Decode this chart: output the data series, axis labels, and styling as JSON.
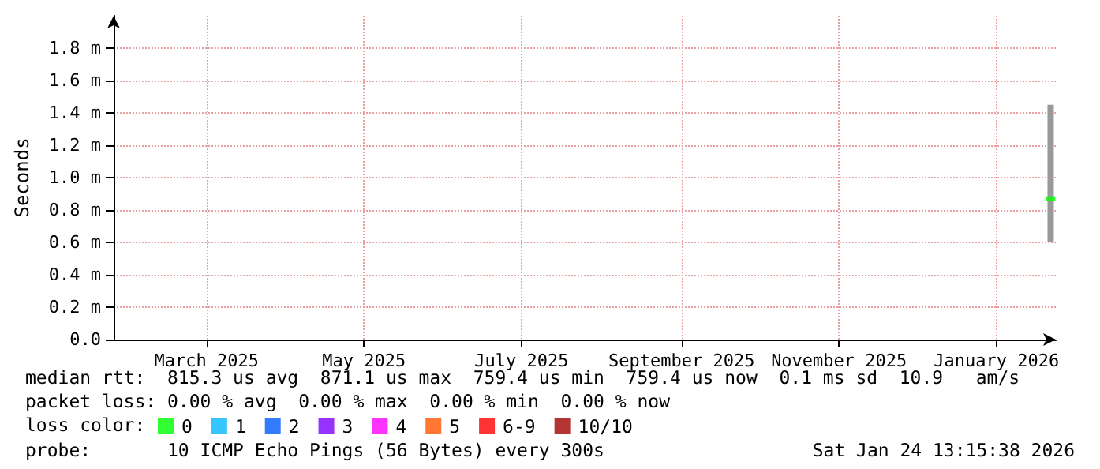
{
  "chart_data": {
    "type": "bar",
    "ylabel": "Seconds",
    "legend_title": "loss color:",
    "legend": "bottom",
    "grid": true,
    "marker": "square",
    "xlim": [
      "2025-01-24",
      "2026-01-24"
    ],
    "xticks": [
      {
        "value": "2025-03-01",
        "label": "March 2025"
      },
      {
        "value": "2025-05-01",
        "label": "May 2025"
      },
      {
        "value": "2025-07-01",
        "label": "July 2025"
      },
      {
        "value": "2025-09-01",
        "label": "September 2025"
      },
      {
        "value": "2025-11-01",
        "label": "November 2025"
      },
      {
        "value": "2026-01-01",
        "label": "January 2026"
      }
    ],
    "ylim": [
      0,
      2
    ],
    "yticks": [
      {
        "value": 0,
        "label": "0.0"
      },
      {
        "value": 0.2,
        "label": "0.2 m"
      },
      {
        "value": 0.4,
        "label": "0.4 m"
      },
      {
        "value": 0.6,
        "label": "0.6 m"
      },
      {
        "value": 0.8,
        "label": "0.8 m"
      },
      {
        "value": 1.0,
        "label": "1.0 m"
      },
      {
        "value": 1.2,
        "label": "1.2 m"
      },
      {
        "value": 1.4,
        "label": "1.4 m"
      },
      {
        "value": 1.6,
        "label": "1.6 m"
      },
      {
        "value": 1.8,
        "label": "1.8 m"
      }
    ],
    "series": [
      {
        "color": "#999999",
        "x": [
          "2026-01-22"
        ],
        "base": [
          0.6
        ],
        "values": [
          0.85
        ]
      },
      {
        "type": "scatter",
        "name": "0",
        "color": "#00ff00",
        "x": [
          "2026-01-22"
        ],
        "values": [
          0.87
        ]
      },
      {
        "type": "scatter",
        "name": "1",
        "color": "#00b8ff",
        "values": [
          null
        ]
      },
      {
        "type": "scatter",
        "name": "2",
        "color": "#0059ff",
        "values": [
          null
        ]
      },
      {
        "type": "scatter",
        "name": "3",
        "color": "#7e00ff",
        "values": [
          null
        ]
      },
      {
        "type": "scatter",
        "name": "4",
        "color": "#ff00ff",
        "values": [
          null
        ]
      },
      {
        "type": "scatter",
        "name": "5",
        "color": "#ff5500",
        "values": [
          null
        ]
      },
      {
        "type": "scatter",
        "name": "6-9",
        "color": "#ff0000",
        "values": [
          null
        ]
      },
      {
        "type": "scatter",
        "name": "10/10",
        "color": "#a10000",
        "values": [
          null
        ]
      }
    ],
    "annotations": [
      "median rtt:  815.3 us avg  871.1 us max  759.4 us min  759.4 us now  0.1 ms sd  10.9   am/s",
      "packet loss: 0.00 % avg  0.00 % max  0.00 % min  0.00 % now",
      "probe:       10 ICMP Echo Pings (56 Bytes) every 300s",
      "Sat Jan 24 13:15:38 2026"
    ]
  }
}
